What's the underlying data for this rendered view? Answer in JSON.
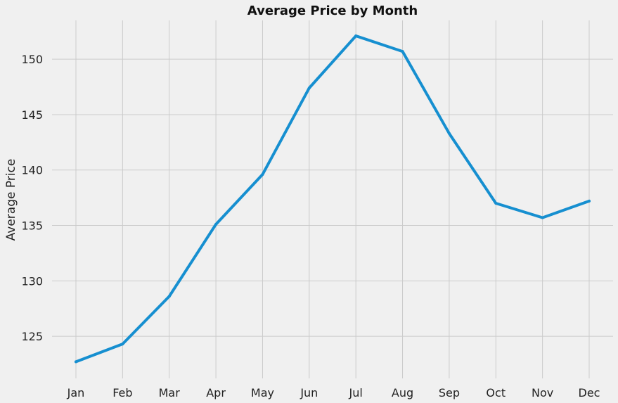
{
  "chart_data": {
    "type": "line",
    "title": "Average Price by Month",
    "xlabel": "",
    "ylabel": "Average Price",
    "categories": [
      "Jan",
      "Feb",
      "Mar",
      "Apr",
      "May",
      "Jun",
      "Jul",
      "Aug",
      "Sep",
      "Oct",
      "Nov",
      "Dec"
    ],
    "series": [
      {
        "values": [
          122.7,
          124.3,
          128.6,
          135.1,
          139.6,
          147.4,
          152.1,
          150.7,
          143.3,
          137.0,
          135.7,
          137.2
        ]
      }
    ],
    "yticks": [
      125,
      130,
      135,
      140,
      145,
      150
    ],
    "ylim": [
      121.2,
      153.5
    ],
    "grid": true,
    "legend": "none",
    "colors": {
      "line": "#168fd0",
      "background": "#f0f0f0",
      "grid": "#cbcbcb"
    }
  }
}
